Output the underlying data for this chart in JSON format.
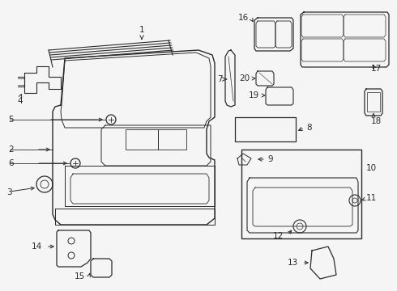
{
  "bg_color": "#f5f5f5",
  "line_color": "#2a2a2a",
  "label_color": "#111111",
  "figsize": [
    4.9,
    3.6
  ],
  "dpi": 100
}
